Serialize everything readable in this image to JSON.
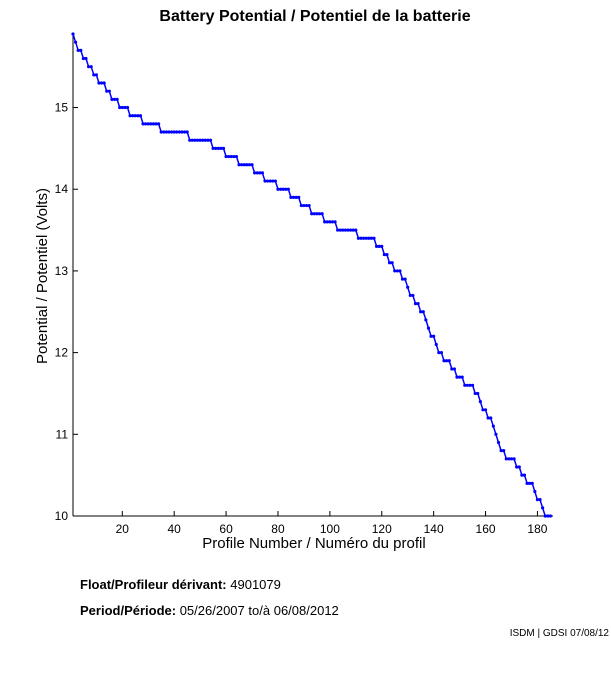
{
  "chart_data": {
    "type": "line",
    "title": "Battery Potential / Potentiel de la batterie",
    "xlabel": "Profile Number / Numéro du profil",
    "ylabel": "Potential / Potentiel (Volts)",
    "xlim": [
      1,
      186
    ],
    "ylim": [
      10,
      15.9
    ],
    "xticks": [
      20,
      40,
      60,
      80,
      100,
      120,
      140,
      160,
      180
    ],
    "yticks": [
      10,
      11,
      12,
      13,
      14,
      15
    ],
    "grid": false,
    "legend": "none",
    "color": "#0000ff",
    "series": [
      {
        "x": [
          1,
          2,
          3,
          4,
          5,
          6,
          7,
          8,
          9,
          10,
          11,
          12,
          13,
          14,
          15,
          16,
          17,
          18,
          19,
          20,
          21,
          22,
          23,
          24,
          25,
          26,
          27,
          28,
          29,
          30,
          31,
          32,
          33,
          34,
          35,
          36,
          37,
          38,
          39,
          40,
          41,
          42,
          43,
          44,
          45,
          46,
          47,
          48,
          49,
          50,
          51,
          52,
          53,
          54,
          55,
          56,
          57,
          58,
          59,
          60,
          61,
          62,
          63,
          64,
          65,
          66,
          67,
          68,
          69,
          70,
          71,
          72,
          73,
          74,
          75,
          76,
          77,
          78,
          79,
          80,
          81,
          82,
          83,
          84,
          85,
          86,
          87,
          88,
          89,
          90,
          91,
          92,
          93,
          94,
          95,
          96,
          97,
          98,
          99,
          100,
          101,
          102,
          103,
          104,
          105,
          106,
          107,
          108,
          109,
          110,
          111,
          112,
          113,
          114,
          115,
          116,
          117,
          118,
          119,
          120,
          121,
          122,
          123,
          124,
          125,
          126,
          127,
          128,
          129,
          130,
          131,
          132,
          133,
          134,
          135,
          136,
          137,
          138,
          139,
          140,
          141,
          142,
          143,
          144,
          145,
          146,
          147,
          148,
          149,
          150,
          151,
          152,
          153,
          154,
          155,
          156,
          157,
          158,
          159,
          160,
          161,
          162,
          163,
          164,
          165,
          166,
          167,
          168,
          169,
          170,
          171,
          172,
          173,
          174,
          175,
          176,
          177,
          178,
          179,
          180,
          181,
          182,
          183,
          184,
          185
        ],
        "y": [
          15.9,
          15.8,
          15.7,
          15.7,
          15.6,
          15.6,
          15.5,
          15.5,
          15.4,
          15.4,
          15.3,
          15.3,
          15.3,
          15.2,
          15.2,
          15.1,
          15.1,
          15.1,
          15.0,
          15.0,
          15.0,
          15.0,
          14.9,
          14.9,
          14.9,
          14.9,
          14.9,
          14.8,
          14.8,
          14.8,
          14.8,
          14.8,
          14.8,
          14.8,
          14.7,
          14.7,
          14.7,
          14.7,
          14.7,
          14.7,
          14.7,
          14.7,
          14.7,
          14.7,
          14.7,
          14.6,
          14.6,
          14.6,
          14.6,
          14.6,
          14.6,
          14.6,
          14.6,
          14.6,
          14.5,
          14.5,
          14.5,
          14.5,
          14.5,
          14.4,
          14.4,
          14.4,
          14.4,
          14.4,
          14.3,
          14.3,
          14.3,
          14.3,
          14.3,
          14.3,
          14.2,
          14.2,
          14.2,
          14.2,
          14.1,
          14.1,
          14.1,
          14.1,
          14.1,
          14.0,
          14.0,
          14.0,
          14.0,
          14.0,
          13.9,
          13.9,
          13.9,
          13.9,
          13.8,
          13.8,
          13.8,
          13.8,
          13.7,
          13.7,
          13.7,
          13.7,
          13.7,
          13.6,
          13.6,
          13.6,
          13.6,
          13.6,
          13.5,
          13.5,
          13.5,
          13.5,
          13.5,
          13.5,
          13.5,
          13.5,
          13.4,
          13.4,
          13.4,
          13.4,
          13.4,
          13.4,
          13.4,
          13.3,
          13.3,
          13.3,
          13.2,
          13.2,
          13.1,
          13.1,
          13.0,
          13.0,
          13.0,
          12.9,
          12.9,
          12.8,
          12.7,
          12.7,
          12.6,
          12.6,
          12.5,
          12.5,
          12.4,
          12.3,
          12.2,
          12.2,
          12.1,
          12.0,
          12.0,
          11.9,
          11.9,
          11.9,
          11.8,
          11.8,
          11.7,
          11.7,
          11.7,
          11.6,
          11.6,
          11.6,
          11.6,
          11.5,
          11.5,
          11.4,
          11.3,
          11.3,
          11.2,
          11.2,
          11.1,
          11.0,
          10.9,
          10.8,
          10.8,
          10.7,
          10.7,
          10.7,
          10.7,
          10.6,
          10.6,
          10.5,
          10.5,
          10.4,
          10.4,
          10.4,
          10.3,
          10.2,
          10.2,
          10.1,
          10.0,
          10.0,
          10.0
        ]
      }
    ]
  },
  "info": {
    "float_label": "Float/Profileur dérivant:",
    "float_value": "4901079",
    "period_label": "Period/Période:",
    "period_start": "05/26/2007",
    "period_sep": "to/à",
    "period_end": "06/08/2012"
  },
  "credit": "ISDM | GDSI 07/08/12"
}
